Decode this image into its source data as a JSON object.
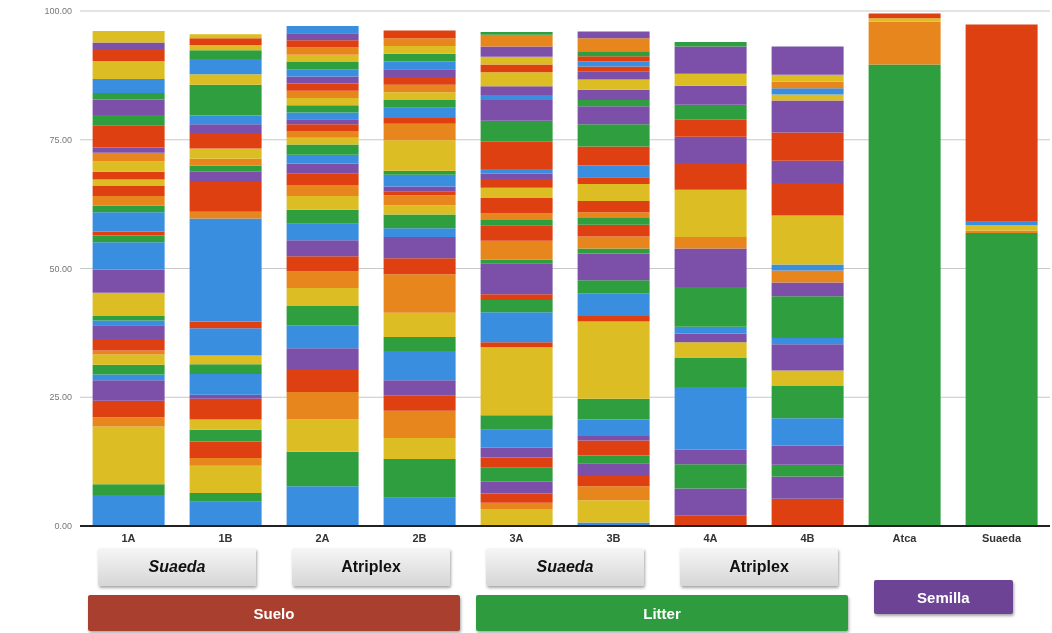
{
  "chart_data": {
    "type": "bar",
    "stacked": true,
    "categories": [
      "1A",
      "1B",
      "2A",
      "2B",
      "3A",
      "3B",
      "4A",
      "4B",
      "Atca",
      "Suaeda"
    ],
    "ylim": [
      0,
      100
    ],
    "yticks": [
      {
        "value": 0,
        "label": "0.00"
      },
      {
        "value": 25,
        "label": "25.00"
      },
      {
        "value": 50,
        "label": "50.00"
      },
      {
        "value": 75,
        "label": "75.00"
      },
      {
        "value": 100,
        "label": "100.00"
      }
    ],
    "grid": "y",
    "annotations": [
      "Suaeda",
      "Atriplex",
      "Suaeda",
      "Atriplex",
      "Suelo",
      "Litter",
      "Semilla"
    ],
    "series": [
      {
        "values": [
          6.0,
          4.7,
          7.7,
          5.5,
          3.3,
          0.7,
          2.0,
          5.3,
          89.6,
          56.9
        ],
        "colors": [
          "#3a8ee0",
          "#3a8ee0",
          "#3a8ee0",
          "#3a8ee0",
          "#dcbe24",
          "#3a8ee0",
          "#de4012",
          "#de4012",
          "#2e9e3e",
          "#2e9e3e"
        ]
      },
      {
        "values": [
          2.1,
          1.7,
          6.7,
          7.5,
          1.2,
          4.3,
          5.3,
          4.3,
          8.3,
          0.5
        ],
        "colors": [
          "#2e9e3e",
          "#2e9e3e",
          "#2e9e3e",
          "#2e9e3e",
          "#e8861e",
          "#dcbe24",
          "#7c50a8",
          "#7c50a8",
          "#e8861e",
          "#e8861e"
        ]
      },
      {
        "values": [
          11.2,
          5.3,
          6.3,
          4.1,
          1.8,
          2.7,
          4.7,
          2.3,
          0.7,
          1.0
        ],
        "colors": [
          "#dcbe24",
          "#dcbe24",
          "#dcbe24",
          "#dcbe24",
          "#de4012",
          "#e8861e",
          "#2e9e3e",
          "#2e9e3e",
          "#dcbe24",
          "#dcbe24"
        ]
      },
      {
        "values": [
          1.8,
          1.5,
          5.3,
          5.3,
          2.3,
          2.0,
          2.8,
          3.7,
          0.9,
          0.7
        ],
        "colors": [
          "#e8861e",
          "#e8861e",
          "#e8861e",
          "#e8861e",
          "#7c50a8",
          "#de4012",
          "#7c50a8",
          "#7c50a8",
          "#de4012",
          "#3a8ee0"
        ]
      },
      {
        "values": [
          3.2,
          3.2,
          4.5,
          3.0,
          2.7,
          2.5,
          12.2,
          5.3,
          null,
          38.3
        ],
        "colors": [
          "#de4012",
          "#de4012",
          "#de4012",
          "#de4012",
          "#2e9e3e",
          "#7c50a8",
          "#3a8ee0",
          "#3a8ee0",
          null,
          "#de4012"
        ]
      },
      {
        "values": [
          4.0,
          2.3,
          4.0,
          2.9,
          2.0,
          1.5,
          5.7,
          6.3,
          null,
          null
        ],
        "colors": [
          "#7c50a8",
          "#2e9e3e",
          "#7c50a8",
          "#7c50a8",
          "#de4012",
          "#2e9e3e",
          "#2e9e3e",
          "#2e9e3e",
          null,
          null
        ]
      },
      {
        "values": [
          1.1,
          2.0,
          4.5,
          5.7,
          1.9,
          2.9,
          3.0,
          3.0,
          null,
          null
        ],
        "colors": [
          "#3a8ee0",
          "#dcbe24",
          "#3a8ee0",
          "#3a8ee0",
          "#7c50a8",
          "#de4012",
          "#dcbe24",
          "#dcbe24",
          null,
          null
        ]
      },
      {
        "values": [
          1.9,
          4.0,
          3.7,
          2.7,
          3.5,
          0.9,
          1.7,
          5.1,
          null,
          null
        ],
        "colors": [
          "#2e9e3e",
          "#de4012",
          "#2e9e3e",
          "#2e9e3e",
          "#3a8ee0",
          "#7c50a8",
          "#7c50a8",
          "#7c50a8",
          null,
          null
        ]
      },
      {
        "values": [
          2.0,
          0.8,
          3.5,
          4.7,
          2.8,
          3.2,
          1.3,
          1.2,
          null,
          null
        ],
        "colors": [
          "#dcbe24",
          "#7c50a8",
          "#dcbe24",
          "#dcbe24",
          "#2e9e3e",
          "#3a8ee0",
          "#3a8ee0",
          "#3a8ee0",
          null,
          null
        ]
      },
      {
        "values": [
          0.8,
          4.0,
          3.2,
          7.5,
          13.2,
          4.0,
          7.7,
          8.1,
          null,
          null
        ],
        "colors": [
          "#e8861e",
          "#3a8ee0",
          "#e8861e",
          "#e8861e",
          "#dcbe24",
          "#2e9e3e",
          "#2e9e3e",
          "#2e9e3e",
          null,
          null
        ]
      },
      {
        "values": [
          2.2,
          1.9,
          3.0,
          3.1,
          1.0,
          15.0,
          7.5,
          2.7,
          null,
          null
        ],
        "colors": [
          "#de4012",
          "#2e9e3e",
          "#de4012",
          "#de4012",
          "#de4012",
          "#dcbe24",
          "#7c50a8",
          "#7c50a8",
          null,
          null
        ]
      },
      {
        "values": [
          2.7,
          1.7,
          3.1,
          4.1,
          5.8,
          1.1,
          2.2,
          2.3,
          null,
          null
        ],
        "colors": [
          "#7c50a8",
          "#dcbe24",
          "#7c50a8",
          "#7c50a8",
          "#3a8ee0",
          "#de4012",
          "#e8861e",
          "#e8861e",
          null,
          null
        ]
      },
      {
        "values": [
          0.9,
          5.3,
          3.2,
          1.7,
          2.4,
          4.4,
          9.2,
          1.2,
          null,
          null
        ],
        "colors": [
          "#3a8ee0",
          "#3a8ee0",
          "#3a8ee0",
          "#3a8ee0",
          "#2e9e3e",
          "#3a8ee0",
          "#dcbe24",
          "#3a8ee0",
          null,
          null
        ]
      },
      {
        "values": [
          0.9,
          1.3,
          2.7,
          2.7,
          1.1,
          2.5,
          5.2,
          9.5,
          null,
          null
        ],
        "colors": [
          "#2e9e3e",
          "#de4012",
          "#2e9e3e",
          "#2e9e3e",
          "#de4012",
          "#2e9e3e",
          "#de4012",
          "#dcbe24",
          null,
          null
        ]
      },
      {
        "values": [
          4.5,
          20.0,
          2.7,
          1.8,
          6.0,
          5.2,
          5.1,
          6.3,
          null,
          null
        ],
        "colors": [
          "#dcbe24",
          "#3a8ee0",
          "#dcbe24",
          "#dcbe24",
          "#7c50a8",
          "#7c50a8",
          "#7c50a8",
          "#de4012",
          null,
          null
        ]
      },
      {
        "values": [
          4.5,
          1.3,
          2.1,
          1.9,
          0.7,
          1.0,
          3.3,
          4.3,
          null,
          null
        ],
        "colors": [
          "#7c50a8",
          "#e8861e",
          "#e8861e",
          "#e8861e",
          "#2e9e3e",
          "#2e9e3e",
          "#de4012",
          "#7c50a8",
          null,
          null
        ]
      },
      {
        "values": [
          5.3,
          5.8,
          2.2,
          0.8,
          3.7,
          2.3,
          2.9,
          5.5,
          null,
          null
        ],
        "colors": [
          "#3a8ee0",
          "#de4012",
          "#de4012",
          "#de4012",
          "#e8861e",
          "#e8861e",
          "#2e9e3e",
          "#de4012",
          null,
          null
        ]
      },
      {
        "values": [
          1.3,
          2.0,
          2.0,
          0.9,
          3.0,
          2.3,
          3.7,
          6.2,
          null,
          null
        ],
        "colors": [
          "#2e9e3e",
          "#7c50a8",
          "#7c50a8",
          "#7c50a8",
          "#de4012",
          "#de4012",
          "#7c50a8",
          "#7c50a8",
          null,
          null
        ]
      },
      {
        "values": [
          0.8,
          1.2,
          1.7,
          2.3,
          1.0,
          1.3,
          2.3,
          1.2,
          null,
          null
        ],
        "colors": [
          "#de4012",
          "#2e9e3e",
          "#3a8ee0",
          "#3a8ee0",
          "#2e9e3e",
          "#2e9e3e",
          "#dcbe24",
          "#dcbe24",
          null,
          null
        ]
      },
      {
        "values": [
          3.7,
          1.3,
          2.0,
          0.8,
          1.3,
          1.1,
          5.3,
          1.2,
          null,
          null
        ],
        "colors": [
          "#3a8ee0",
          "#e8861e",
          "#2e9e3e",
          "#2e9e3e",
          "#e8861e",
          "#e8861e",
          "#7c50a8",
          "#3a8ee0",
          null,
          null
        ]
      },
      {
        "values": [
          1.3,
          2.0,
          1.3,
          5.9,
          3.0,
          2.2,
          0.9,
          1.3,
          null,
          null
        ],
        "colors": [
          "#2e9e3e",
          "#dcbe24",
          "#dcbe24",
          "#dcbe24",
          "#de4012",
          "#de4012",
          "#2e9e3e",
          "#e8861e",
          null,
          null
        ]
      },
      {
        "values": [
          1.9,
          3.0,
          1.3,
          3.2,
          2.0,
          3.3,
          null,
          1.3,
          null,
          null
        ],
        "colors": [
          "#e8861e",
          "#de4012",
          "#e8861e",
          "#e8861e",
          "#dcbe24",
          "#dcbe24",
          null,
          "#dcbe24",
          null,
          null
        ]
      },
      {
        "values": [
          2.0,
          1.7,
          1.3,
          1.1,
          1.7,
          1.3,
          null,
          5.5,
          null,
          null
        ],
        "colors": [
          "#de4012",
          "#7c50a8",
          "#de4012",
          "#de4012",
          "#de4012",
          "#de4012",
          null,
          "#7c50a8",
          null,
          null
        ]
      },
      {
        "values": [
          1.2,
          1.7,
          1.0,
          2.0,
          1.0,
          2.3,
          null,
          null,
          null,
          null
        ],
        "colors": [
          "#dcbe24",
          "#3a8ee0",
          "#7c50a8",
          "#3a8ee0",
          "#7c50a8",
          "#3a8ee0",
          null,
          null,
          null,
          null
        ]
      },
      {
        "values": [
          1.5,
          6.0,
          1.3,
          1.5,
          0.9,
          3.7,
          null,
          null,
          null,
          null
        ],
        "colors": [
          "#de4012",
          "#2e9e3e",
          "#3a8ee0",
          "#2e9e3e",
          "#3a8ee0",
          "#de4012",
          null,
          null,
          null,
          null
        ]
      },
      {
        "values": [
          2.0,
          2.0,
          1.4,
          1.5,
          5.3,
          4.3,
          null,
          null,
          null,
          null
        ],
        "colors": [
          "#dcbe24",
          "#dcbe24",
          "#2e9e3e",
          "#dcbe24",
          "#de4012",
          "#2e9e3e",
          null,
          null,
          null,
          null
        ]
      },
      {
        "values": [
          1.7,
          3.0,
          1.4,
          1.5,
          4.1,
          3.5,
          null,
          null,
          null,
          null
        ],
        "colors": [
          "#e8861e",
          "#3a8ee0",
          "#dcbe24",
          "#e8861e",
          "#2e9e3e",
          "#7c50a8",
          null,
          null,
          null,
          null
        ]
      },
      {
        "values": [
          1.0,
          1.7,
          1.4,
          1.5,
          4.0,
          1.2,
          null,
          null,
          null,
          null
        ],
        "colors": [
          "#7c50a8",
          "#2e9e3e",
          "#e8861e",
          "#de4012",
          "#7c50a8",
          "#2e9e3e",
          null,
          null,
          null,
          null
        ]
      },
      {
        "values": [
          4.3,
          1.0,
          1.4,
          1.5,
          1.0,
          2.0,
          null,
          null,
          null,
          null
        ],
        "colors": [
          "#de4012",
          "#dcbe24",
          "#de4012",
          "#7c50a8",
          "#3a8ee0",
          "#7c50a8",
          null,
          null,
          null,
          null
        ]
      },
      {
        "values": [
          2.0,
          1.3,
          1.4,
          1.5,
          1.7,
          2.0,
          null,
          null,
          null,
          null
        ],
        "colors": [
          "#2e9e3e",
          "#de4012",
          "#7c50a8",
          "#3a8ee0",
          "#7c50a8",
          "#dcbe24",
          null,
          null,
          null,
          null
        ]
      },
      {
        "values": [
          3.0,
          0.8,
          1.4,
          1.5,
          2.7,
          1.5,
          null,
          null,
          null,
          null
        ],
        "colors": [
          "#7c50a8",
          "#dcbe24",
          "#3a8ee0",
          "#2e9e3e",
          "#dcbe24",
          "#7c50a8",
          null,
          null,
          null,
          null
        ]
      },
      {
        "values": [
          1.3,
          null,
          1.4,
          1.5,
          1.5,
          1.0,
          null,
          null,
          null,
          null
        ],
        "colors": [
          "#2e9e3e",
          null,
          "#2e9e3e",
          "#dcbe24",
          "#de4012",
          "#de4012",
          null,
          null,
          null,
          null
        ]
      },
      {
        "values": [
          2.7,
          null,
          1.4,
          1.5,
          1.5,
          1.0,
          null,
          null,
          null,
          null
        ],
        "colors": [
          "#3a8ee0",
          null,
          "#dcbe24",
          "#e8861e",
          "#dcbe24",
          "#3a8ee0",
          null,
          null,
          null,
          null
        ]
      },
      {
        "values": [
          3.5,
          null,
          1.4,
          1.5,
          2.0,
          1.0,
          null,
          null,
          null,
          null
        ],
        "colors": [
          "#dcbe24",
          null,
          "#e8861e",
          "#de4012",
          "#7c50a8",
          "#de4012",
          null,
          null,
          null,
          null
        ]
      },
      {
        "values": [
          2.3,
          null,
          1.4,
          null,
          2.3,
          1.0,
          null,
          null,
          null,
          null
        ],
        "colors": [
          "#de4012",
          null,
          "#de4012",
          null,
          "#e8861e",
          "#2e9e3e",
          null,
          null,
          null,
          null
        ]
      },
      {
        "values": [
          1.3,
          null,
          1.4,
          null,
          0.5,
          2.5,
          null,
          null,
          null,
          null
        ],
        "colors": [
          "#7c50a8",
          null,
          "#7c50a8",
          null,
          "#2e9e3e",
          "#e8861e",
          null,
          null,
          null,
          null
        ]
      },
      {
        "values": [
          2.2,
          null,
          1.4,
          null,
          null,
          1.3,
          null,
          null,
          null,
          null
        ],
        "colors": [
          "#dcbe24",
          null,
          "#3a8ee0",
          null,
          null,
          "#7c50a8",
          null,
          null,
          null,
          null
        ]
      }
    ]
  }
}
